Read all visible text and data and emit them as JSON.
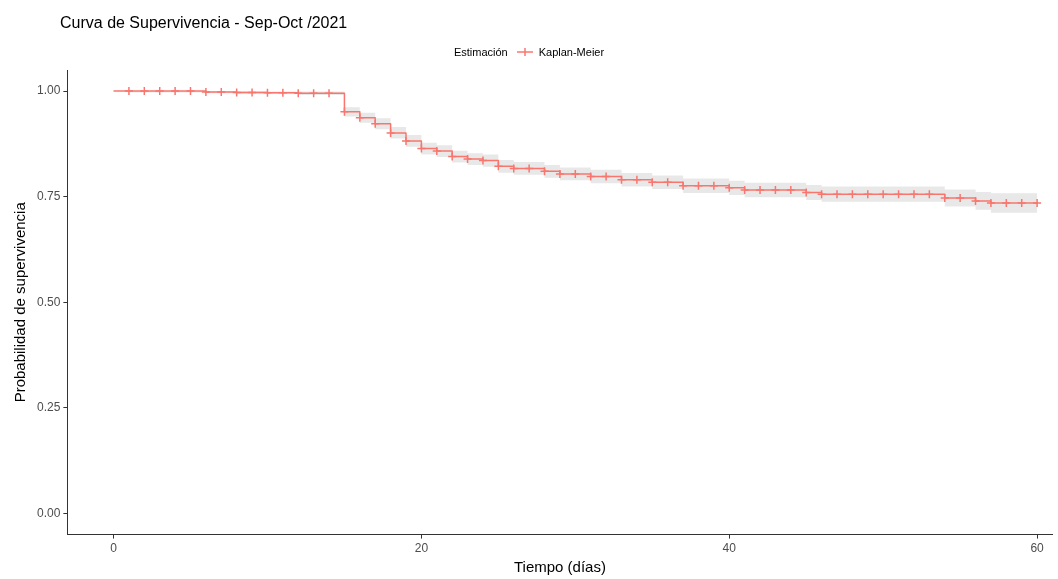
{
  "chart_data": {
    "type": "step",
    "title": "Curva de Supervivencia - Sep-Oct /2021",
    "xlabel": "Tiempo (días)",
    "ylabel": "Probabilidad de supervivencia",
    "legend_title": "Estimación",
    "legend": "top",
    "grid": false,
    "marker": "cross",
    "line_style": "solid",
    "x": [
      0,
      1,
      2,
      3,
      4,
      5,
      6,
      7,
      8,
      9,
      10,
      11,
      12,
      13,
      14,
      15,
      16,
      17,
      18,
      19,
      20,
      21,
      22,
      23,
      24,
      25,
      26,
      27,
      28,
      29,
      30,
      31,
      32,
      33,
      34,
      35,
      36,
      37,
      38,
      39,
      40,
      41,
      42,
      43,
      44,
      45,
      46,
      47,
      48,
      49,
      50,
      51,
      52,
      53,
      54,
      55,
      56,
      57,
      58,
      59,
      60
    ],
    "series": [
      {
        "name": "Kaplan-Meier",
        "color": "#f8766d",
        "values": [
          1.0,
          1.0,
          1.0,
          1.0,
          1.0,
          1.0,
          0.998,
          0.998,
          0.997,
          0.997,
          0.996,
          0.996,
          0.995,
          0.995,
          0.995,
          0.951,
          0.937,
          0.923,
          0.901,
          0.882,
          0.864,
          0.858,
          0.845,
          0.839,
          0.836,
          0.822,
          0.817,
          0.817,
          0.81,
          0.804,
          0.804,
          0.798,
          0.798,
          0.79,
          0.79,
          0.784,
          0.784,
          0.776,
          0.776,
          0.776,
          0.771,
          0.766,
          0.766,
          0.766,
          0.766,
          0.76,
          0.756,
          0.756,
          0.756,
          0.756,
          0.756,
          0.756,
          0.756,
          0.756,
          0.747,
          0.747,
          0.74,
          0.735,
          0.735,
          0.735,
          0.735
        ],
        "lower": [
          1.0,
          0.997,
          0.997,
          0.997,
          0.997,
          0.997,
          0.995,
          0.995,
          0.994,
          0.994,
          0.993,
          0.993,
          0.991,
          0.991,
          0.991,
          0.94,
          0.925,
          0.91,
          0.888,
          0.868,
          0.85,
          0.844,
          0.831,
          0.825,
          0.821,
          0.807,
          0.802,
          0.802,
          0.795,
          0.789,
          0.789,
          0.782,
          0.782,
          0.774,
          0.774,
          0.768,
          0.768,
          0.759,
          0.759,
          0.759,
          0.754,
          0.749,
          0.749,
          0.749,
          0.749,
          0.742,
          0.738,
          0.738,
          0.738,
          0.738,
          0.738,
          0.738,
          0.738,
          0.738,
          0.727,
          0.727,
          0.719,
          0.712,
          0.712,
          0.712,
          0.712
        ],
        "upper": [
          1.0,
          1.0,
          1.0,
          1.0,
          1.0,
          1.0,
          1.0,
          1.0,
          1.0,
          1.0,
          0.999,
          0.999,
          0.999,
          0.999,
          0.999,
          0.962,
          0.949,
          0.936,
          0.915,
          0.896,
          0.878,
          0.872,
          0.859,
          0.853,
          0.85,
          0.837,
          0.832,
          0.832,
          0.825,
          0.819,
          0.819,
          0.814,
          0.814,
          0.806,
          0.806,
          0.8,
          0.8,
          0.793,
          0.793,
          0.793,
          0.788,
          0.783,
          0.783,
          0.783,
          0.783,
          0.778,
          0.774,
          0.774,
          0.774,
          0.774,
          0.774,
          0.774,
          0.774,
          0.774,
          0.767,
          0.767,
          0.761,
          0.758,
          0.758,
          0.758,
          0.758
        ]
      }
    ],
    "xlim": [
      -3,
      61
    ],
    "xticks": [
      0,
      20,
      40,
      60
    ],
    "ylim": [
      -0.05,
      1.05
    ],
    "yticks": [
      {
        "value": 0,
        "label": "0.00"
      },
      {
        "value": 0.25,
        "label": "0.25"
      },
      {
        "value": 0.5,
        "label": "0.50"
      },
      {
        "value": 0.75,
        "label": "0.75"
      },
      {
        "value": 1,
        "label": "1.00"
      }
    ]
  }
}
